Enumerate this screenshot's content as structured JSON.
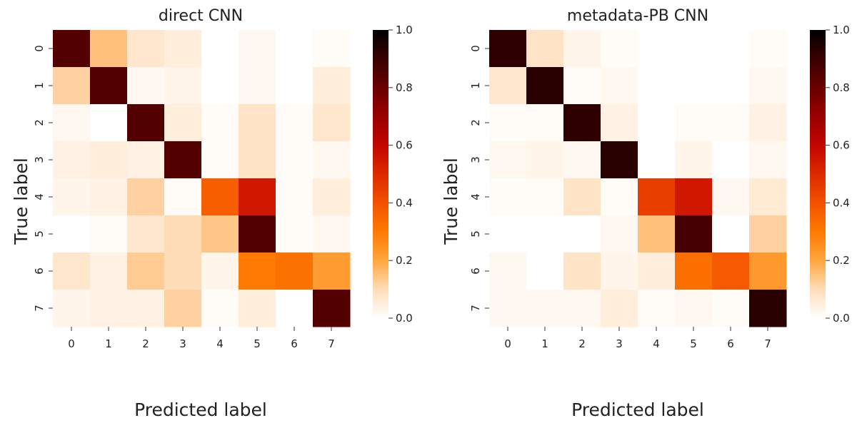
{
  "chart_data": [
    {
      "type": "heatmap",
      "title": "direct CNN",
      "xlabel": "Predicted label",
      "ylabel": "True label",
      "x_categories": [
        "0",
        "1",
        "2",
        "3",
        "4",
        "5",
        "6",
        "7"
      ],
      "y_categories": [
        "0",
        "1",
        "2",
        "3",
        "4",
        "5",
        "6",
        "7"
      ],
      "colorbar": {
        "min": 0.0,
        "max": 1.0,
        "ticks": [
          "0.0",
          "0.2",
          "0.4",
          "0.6",
          "0.8",
          "1.0"
        ]
      },
      "grid": false,
      "values": [
        [
          0.85,
          0.15,
          0.07,
          0.05,
          0.0,
          0.02,
          0.0,
          0.01
        ],
        [
          0.12,
          0.85,
          0.02,
          0.03,
          0.0,
          0.02,
          0.0,
          0.05
        ],
        [
          0.02,
          0.0,
          0.85,
          0.05,
          0.01,
          0.08,
          0.01,
          0.07
        ],
        [
          0.04,
          0.05,
          0.04,
          0.85,
          0.01,
          0.08,
          0.01,
          0.02
        ],
        [
          0.03,
          0.04,
          0.12,
          0.01,
          0.37,
          0.55,
          0.01,
          0.05
        ],
        [
          0.0,
          0.01,
          0.07,
          0.1,
          0.14,
          0.85,
          0.01,
          0.02
        ],
        [
          0.07,
          0.04,
          0.13,
          0.1,
          0.03,
          0.3,
          0.32,
          0.22
        ],
        [
          0.03,
          0.04,
          0.04,
          0.12,
          0.01,
          0.05,
          0.0,
          0.85
        ]
      ]
    },
    {
      "type": "heatmap",
      "title": "metadata-PB CNN",
      "xlabel": "Predicted label",
      "ylabel": "True label",
      "x_categories": [
        "0",
        "1",
        "2",
        "3",
        "4",
        "5",
        "6",
        "7"
      ],
      "y_categories": [
        "0",
        "1",
        "2",
        "3",
        "4",
        "5",
        "6",
        "7"
      ],
      "colorbar": {
        "min": 0.0,
        "max": 1.0,
        "ticks": [
          "0.0",
          "0.2",
          "0.4",
          "0.6",
          "0.8",
          "1.0"
        ]
      },
      "grid": false,
      "values": [
        [
          0.92,
          0.08,
          0.03,
          0.01,
          0.0,
          0.0,
          0.0,
          0.01
        ],
        [
          0.07,
          0.93,
          0.01,
          0.02,
          0.0,
          0.0,
          0.0,
          0.02
        ],
        [
          0.01,
          0.01,
          0.92,
          0.04,
          0.0,
          0.01,
          0.01,
          0.04
        ],
        [
          0.02,
          0.03,
          0.02,
          0.93,
          0.0,
          0.03,
          0.0,
          0.02
        ],
        [
          0.01,
          0.01,
          0.08,
          0.01,
          0.45,
          0.55,
          0.02,
          0.06
        ],
        [
          0.0,
          0.0,
          0.0,
          0.02,
          0.15,
          0.88,
          0.0,
          0.12
        ],
        [
          0.02,
          0.0,
          0.08,
          0.03,
          0.05,
          0.33,
          0.38,
          0.23
        ],
        [
          0.02,
          0.02,
          0.02,
          0.05,
          0.01,
          0.02,
          0.01,
          0.93
        ]
      ]
    }
  ]
}
